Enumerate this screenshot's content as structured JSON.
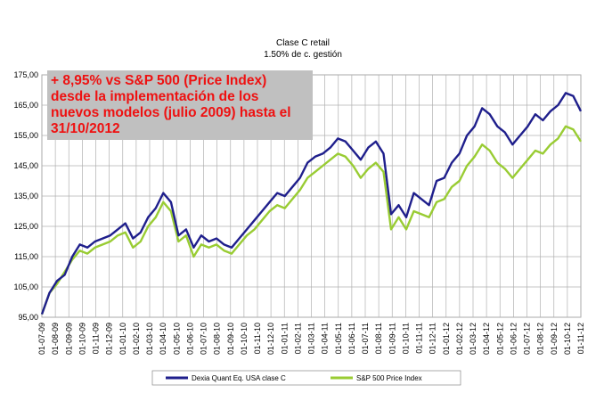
{
  "chart_data": {
    "type": "line",
    "title": "Clase C retail",
    "subtitle": "1.50% de c. gestión",
    "ylim": [
      95,
      175
    ],
    "y_ticks": [
      "95,00",
      "105,00",
      "115,00",
      "125,00",
      "135,00",
      "145,00",
      "155,00",
      "165,00",
      "175,00"
    ],
    "x_ticks": [
      "01-07-09",
      "01-08-09",
      "01-09-09",
      "01-10-09",
      "01-11-09",
      "01-12-09",
      "01-01-10",
      "01-02-10",
      "01-03-10",
      "01-04-10",
      "01-05-10",
      "01-06-10",
      "01-07-10",
      "01-08-10",
      "01-09-10",
      "01-10-10",
      "01-11-10",
      "01-12-10",
      "01-01-11",
      "01-02-11",
      "01-03-11",
      "01-04-11",
      "01-05-11",
      "01-06-11",
      "01-07-11",
      "01-08-11",
      "01-09-11",
      "01-10-11",
      "01-11-11",
      "01-12-11",
      "01-01-12",
      "01-02-12",
      "01-03-12",
      "01-04-12",
      "01-05-12",
      "01-06-12",
      "01-07-12",
      "01-08-12",
      "01-09-12",
      "01-10-12",
      "01-11-12"
    ],
    "grid": true,
    "legend_position": "bottom",
    "annotation_lines": [
      "+ 8,95% vs S&P 500 (Price Index)",
      "desde la implementación de los",
      "nuevos modelos (julio 2009) hasta el",
      "31/10/2012"
    ],
    "series": [
      {
        "name": "Dexia Quant Eq. USA clase C",
        "color": "#1f1f8c",
        "values": [
          96,
          103,
          107,
          109,
          115,
          119,
          118,
          120,
          121,
          122,
          124,
          126,
          121,
          123,
          128,
          131,
          136,
          133,
          122,
          124,
          118,
          122,
          120,
          121,
          119,
          118,
          121,
          124,
          127,
          130,
          133,
          136,
          135,
          138,
          141,
          146,
          148,
          149,
          151,
          154,
          153,
          150,
          147,
          151,
          153,
          149,
          129,
          132,
          128,
          136,
          134,
          132,
          140,
          141,
          146,
          149,
          155,
          158,
          164,
          162,
          158,
          156,
          152,
          155,
          158,
          162,
          160,
          163,
          165,
          169,
          168,
          163
        ]
      },
      {
        "name": "S&P 500 Price Index",
        "color": "#99cc33",
        "values": [
          96,
          103,
          106,
          110,
          114,
          117,
          116,
          118,
          119,
          120,
          122,
          123,
          118,
          120,
          125,
          128,
          133,
          130,
          120,
          122,
          115,
          119,
          118,
          119,
          117,
          116,
          119,
          122,
          124,
          127,
          130,
          132,
          131,
          134,
          137,
          141,
          143,
          145,
          147,
          149,
          148,
          145,
          141,
          144,
          146,
          143,
          124,
          128,
          124,
          130,
          129,
          128,
          133,
          134,
          138,
          140,
          145,
          148,
          152,
          150,
          146,
          144,
          141,
          144,
          147,
          150,
          149,
          152,
          154,
          158,
          157,
          153
        ]
      }
    ]
  }
}
